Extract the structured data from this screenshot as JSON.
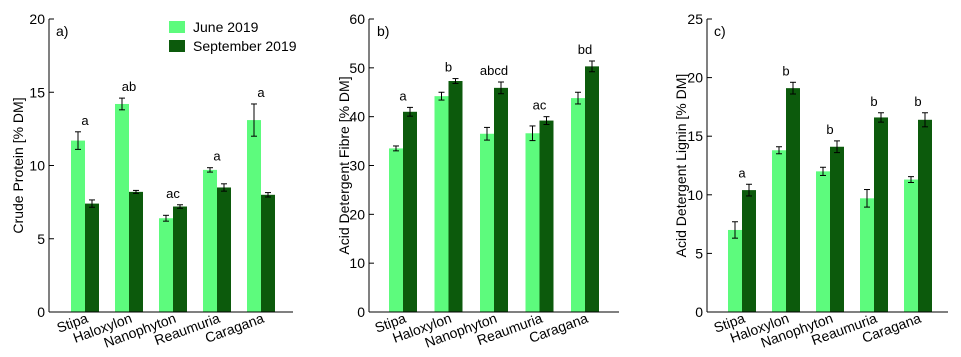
{
  "chart_data": [
    {
      "type": "bar",
      "panel_label": "a)",
      "ylabel": "Crude Protein [% DM]",
      "ylim": [
        0,
        20
      ],
      "yticks": [
        0,
        5,
        10,
        15,
        20
      ],
      "tick_labels": [
        "0",
        "5",
        "10",
        "15",
        "20"
      ],
      "categories": [
        "Stipa",
        "Haloxylon",
        "Nanophyton",
        "Reaumuria",
        "Caragana"
      ],
      "series": [
        {
          "name": "June 2019",
          "values": [
            11.7,
            14.2,
            6.4,
            9.7,
            13.1
          ],
          "errors": [
            0.6,
            0.4,
            0.2,
            0.15,
            1.1
          ]
        },
        {
          "name": "September 2019",
          "values": [
            7.4,
            8.2,
            7.2,
            8.5,
            8.0
          ],
          "errors": [
            0.25,
            0.1,
            0.12,
            0.25,
            0.15
          ]
        }
      ],
      "annotations": [
        "a",
        "ab",
        "ac",
        "a",
        "a"
      ],
      "legend": {
        "placement": "top-right"
      }
    },
    {
      "type": "bar",
      "panel_label": "b)",
      "ylabel": "Acid Detergent Fibre [% DM]",
      "ylim": [
        0,
        60
      ],
      "yticks": [
        0,
        10,
        20,
        30,
        40,
        50,
        60
      ],
      "tick_labels": [
        "0",
        "10",
        "20",
        "30",
        "40",
        "50",
        "60"
      ],
      "categories": [
        "Stipa",
        "Haloxylon",
        "Nanophyton",
        "Reaumuria",
        "Caragana"
      ],
      "series": [
        {
          "name": "June 2019",
          "values": [
            33.5,
            44.2,
            36.5,
            36.6,
            43.8
          ],
          "errors": [
            0.5,
            0.8,
            1.3,
            1.5,
            1.2
          ]
        },
        {
          "name": "September 2019",
          "values": [
            41.0,
            47.3,
            45.9,
            39.2,
            50.3
          ],
          "errors": [
            0.9,
            0.5,
            1.2,
            0.8,
            1.1
          ]
        }
      ],
      "annotations": [
        "a",
        "b",
        "abcd",
        "ac",
        "bd"
      ]
    },
    {
      "type": "bar",
      "panel_label": "c)",
      "ylabel": "Acid Detergent Lignin [% DM]",
      "ylim": [
        0,
        25
      ],
      "yticks": [
        0,
        5,
        10,
        15,
        20,
        25
      ],
      "tick_labels": [
        "0",
        "5",
        "10",
        "15",
        "20",
        "25"
      ],
      "categories": [
        "Stipa",
        "Haloxylon",
        "Nanophyton",
        "Reaumuria",
        "Caragana"
      ],
      "series": [
        {
          "name": "June 2019",
          "values": [
            7.0,
            13.8,
            12.0,
            9.7,
            11.3
          ],
          "errors": [
            0.7,
            0.3,
            0.35,
            0.75,
            0.25
          ]
        },
        {
          "name": "September 2019",
          "values": [
            10.4,
            19.1,
            14.1,
            16.6,
            16.4
          ],
          "errors": [
            0.5,
            0.5,
            0.5,
            0.4,
            0.6
          ]
        }
      ],
      "annotations": [
        "a",
        "b",
        "b",
        "b",
        "b"
      ]
    }
  ],
  "colors": {
    "june": "#5dfb7d",
    "september": "#0c5a0c",
    "axis": "#000000"
  }
}
